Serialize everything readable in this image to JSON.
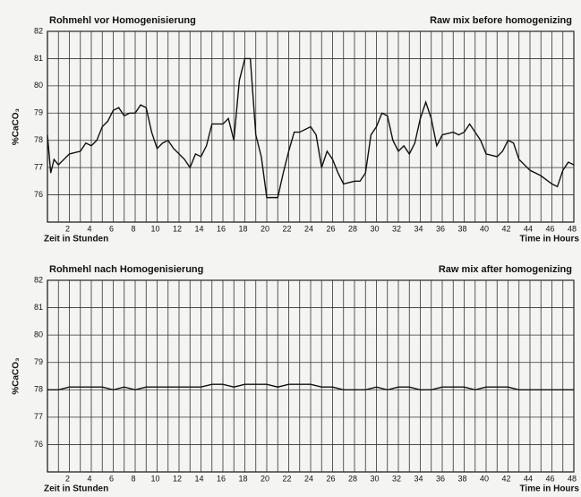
{
  "chart_data": [
    {
      "type": "line",
      "title": "Rohmehl vor Homogenisierung",
      "subtitle": "Raw mix before homogenizing",
      "x_label": "Zeit in Stunden",
      "x_label_2": "Time in Hours",
      "y_label": "%CaCO₃",
      "xlim": [
        0,
        48
      ],
      "ylim": [
        75,
        82
      ],
      "xticks": [
        2,
        4,
        6,
        8,
        10,
        12,
        14,
        16,
        18,
        20,
        22,
        24,
        26,
        28,
        30,
        32,
        34,
        36,
        38,
        40,
        42,
        44,
        46,
        48
      ],
      "xminorticks": [
        1,
        3,
        5,
        7,
        9,
        11,
        13,
        15,
        17,
        19,
        21,
        23,
        25,
        27,
        29,
        31,
        33,
        35,
        37,
        39,
        41,
        43,
        45,
        47
      ],
      "yticks": [
        76,
        77,
        78,
        79,
        80,
        81,
        82
      ],
      "grid": true,
      "series": [
        {
          "color": "#111111",
          "x": [
            0,
            0.3,
            0.6,
            1,
            2,
            3,
            3.5,
            4,
            4.5,
            5,
            5.5,
            6,
            6.5,
            7,
            7.5,
            8,
            8.5,
            9,
            9.5,
            10,
            10.5,
            11,
            11.5,
            12,
            12.5,
            13,
            13.5,
            14,
            14.5,
            15,
            16,
            16.5,
            17,
            17.5,
            18,
            18.5,
            19,
            19.5,
            20,
            21,
            21.5,
            22,
            22.5,
            23,
            24,
            24.5,
            25,
            25.5,
            26,
            26.5,
            27,
            28,
            28.5,
            29,
            29.5,
            30,
            30.5,
            31,
            31.5,
            32,
            32.5,
            33,
            33.5,
            34,
            34.5,
            35,
            35.5,
            36,
            37,
            37.5,
            38,
            38.5,
            39,
            39.5,
            40,
            41,
            41.5,
            42,
            42.5,
            43,
            44,
            45,
            46,
            46.5,
            47,
            47.5,
            48
          ],
          "values": [
            78.2,
            76.8,
            77.3,
            77.1,
            77.5,
            77.6,
            77.9,
            77.8,
            78,
            78.5,
            78.7,
            79.1,
            79.2,
            78.9,
            79,
            79,
            79.3,
            79.2,
            78.3,
            77.7,
            77.9,
            78,
            77.7,
            77.5,
            77.3,
            77,
            77.5,
            77.4,
            77.8,
            78.6,
            78.6,
            78.8,
            78,
            80.2,
            81,
            81,
            78.2,
            77.4,
            75.9,
            75.9,
            76.8,
            77.6,
            78.3,
            78.3,
            78.5,
            78.2,
            77,
            77.6,
            77.3,
            76.8,
            76.4,
            76.5,
            76.5,
            76.8,
            78.2,
            78.5,
            79,
            78.9,
            78,
            77.6,
            77.8,
            77.5,
            77.9,
            78.8,
            79.4,
            78.8,
            77.8,
            78.2,
            78.3,
            78.2,
            78.3,
            78.6,
            78.3,
            78,
            77.5,
            77.4,
            77.6,
            78,
            77.9,
            77.3,
            76.9,
            76.7,
            76.4,
            76.3,
            76.9,
            77.2,
            77.1
          ]
        }
      ]
    },
    {
      "type": "line",
      "title": "Rohmehl nach Homogenisierung",
      "subtitle": "Raw mix after homogenizing",
      "x_label": "Zeit in Stunden",
      "x_label_2": "Time in Hours",
      "y_label": "%CaCO₃",
      "xlim": [
        0,
        48
      ],
      "ylim": [
        75,
        82
      ],
      "xticks": [
        2,
        4,
        6,
        8,
        10,
        12,
        14,
        16,
        18,
        20,
        22,
        24,
        26,
        28,
        30,
        32,
        34,
        36,
        38,
        40,
        42,
        44,
        46,
        48
      ],
      "xminorticks": [
        1,
        3,
        5,
        7,
        9,
        11,
        13,
        15,
        17,
        19,
        21,
        23,
        25,
        27,
        29,
        31,
        33,
        35,
        37,
        39,
        41,
        43,
        45,
        47
      ],
      "yticks": [
        76,
        77,
        78,
        79,
        80,
        81,
        82
      ],
      "grid": true,
      "series": [
        {
          "color": "#111111",
          "x": [
            0,
            1,
            2,
            3,
            4,
            5,
            6,
            7,
            8,
            9,
            10,
            11,
            12,
            13,
            14,
            15,
            16,
            17,
            18,
            19,
            20,
            21,
            22,
            23,
            24,
            25,
            26,
            27,
            28,
            29,
            30,
            31,
            32,
            33,
            34,
            35,
            36,
            37,
            38,
            39,
            40,
            41,
            42,
            43,
            44,
            45,
            46,
            47,
            48
          ],
          "values": [
            78,
            78,
            78.1,
            78.1,
            78.1,
            78.1,
            78,
            78.1,
            78,
            78.1,
            78.1,
            78.1,
            78.1,
            78.1,
            78.1,
            78.2,
            78.2,
            78.1,
            78.2,
            78.2,
            78.2,
            78.1,
            78.2,
            78.2,
            78.2,
            78.1,
            78.1,
            78,
            78,
            78,
            78.1,
            78,
            78.1,
            78.1,
            78,
            78,
            78.1,
            78.1,
            78.1,
            78,
            78.1,
            78.1,
            78.1,
            78,
            78,
            78,
            78,
            78,
            78
          ]
        }
      ]
    }
  ]
}
